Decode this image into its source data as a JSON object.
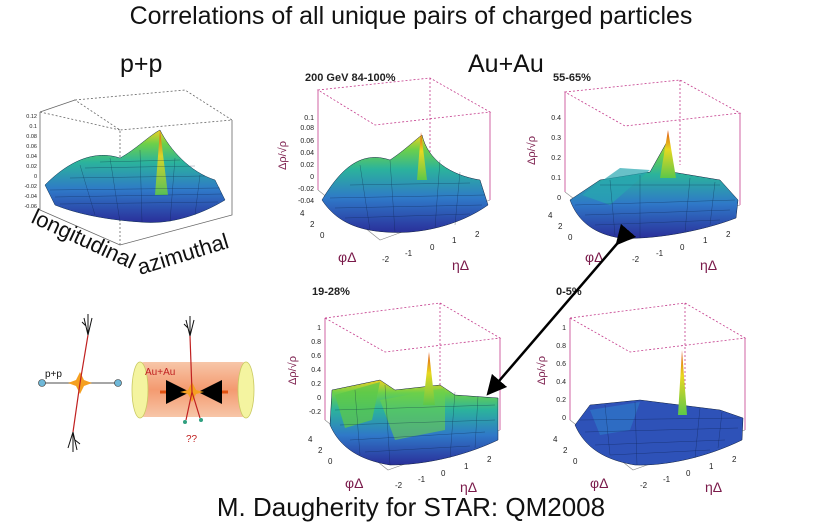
{
  "slide": {
    "title": "Correlations of all unique pairs of charged particles",
    "pp_label": "p+p",
    "auau_label": "Au+Au",
    "footer": "M. Daugherity for STAR: QM2008"
  },
  "pp_plot": {
    "z_ticks": [
      "0.12",
      "0.1",
      "0.08",
      "0.06",
      "0.04",
      "0.02",
      "0",
      "-0.02",
      "-0.04",
      "-0.06"
    ],
    "left_axis_label": "longitudinal",
    "right_axis_label": "azimuthal"
  },
  "panels": [
    {
      "label": "200 GeV 84-100%",
      "z_ticks": [
        "0.1",
        "0.08",
        "0.06",
        "0.04",
        "0.02",
        "0",
        "-0.02",
        "-0.04"
      ],
      "phi_ticks": [
        "4",
        "2",
        "0"
      ],
      "eta_ticks": [
        "-2",
        "-1",
        "0",
        "1",
        "2"
      ]
    },
    {
      "label": "55-65%",
      "z_ticks": [
        "0.4",
        "0.3",
        "0.2",
        "0.1",
        "0"
      ],
      "phi_ticks": [
        "4",
        "2",
        "0"
      ],
      "eta_ticks": [
        "-2",
        "-1",
        "0",
        "1",
        "2"
      ]
    },
    {
      "label": "19-28%",
      "z_ticks": [
        "1",
        "0.8",
        "0.6",
        "0.4",
        "0.2",
        "0",
        "-0.2"
      ],
      "phi_ticks": [
        "4",
        "2",
        "0"
      ],
      "eta_ticks": [
        "-2",
        "-1",
        "0",
        "1",
        "2"
      ]
    },
    {
      "label": "0-5%",
      "z_ticks": [
        "1",
        "0.8",
        "0.6",
        "0.4",
        "0.2",
        "0"
      ],
      "phi_ticks": [
        "4",
        "2",
        "0"
      ],
      "eta_ticks": [
        "-2",
        "-1",
        "0",
        "1",
        "2"
      ]
    }
  ],
  "axis_labels": {
    "z": "Δρ/√ρ",
    "phi": "φΔ",
    "eta": "ηΔ"
  },
  "diagrams": {
    "pp_label": "p+p",
    "auau_label": "Au+Au",
    "question": "??"
  }
}
